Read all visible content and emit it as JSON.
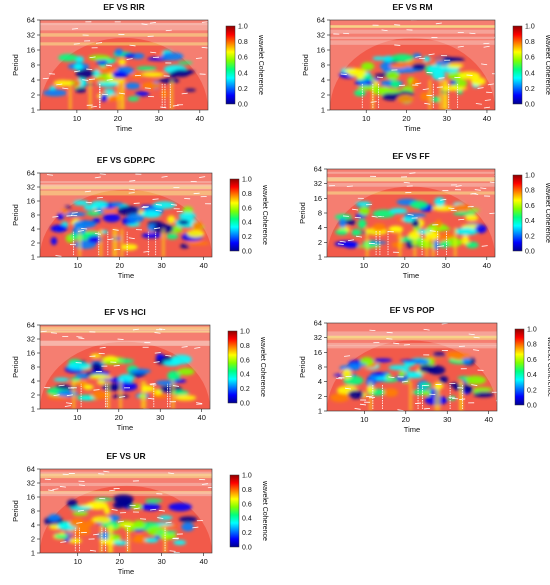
{
  "colors": {
    "background": "#ffffff",
    "coherence_scale": [
      "#00008f",
      "#0000ff",
      "#0080ff",
      "#00ffff",
      "#00ff80",
      "#80ff00",
      "#ffff00",
      "#ff8000",
      "#ff0000",
      "#8f0000"
    ],
    "high_coherence": "#f25a4a",
    "arrow_color": "#ffffff"
  },
  "chart_data": [
    {
      "type": "heatmap",
      "title": "EF VS RIR",
      "xlabel": "Time",
      "ylabel": "Period",
      "x_ticks": [
        10,
        20,
        30,
        40
      ],
      "y_ticks": [
        1,
        2,
        4,
        8,
        16,
        32,
        64
      ],
      "y_scale": "log2",
      "xlim": [
        1,
        42
      ],
      "ylim": [
        1,
        64
      ],
      "colorbar": {
        "label": "wavelet Coherence",
        "ticks": [
          0.0,
          0.2,
          0.4,
          0.6,
          0.8,
          1.0
        ],
        "range": [
          0.0,
          1.0
        ]
      },
      "cone_of_influence": true,
      "grid": false
    },
    {
      "type": "heatmap",
      "title": "EF VS RM",
      "xlabel": "Time",
      "ylabel": "Period",
      "x_ticks": [
        10,
        20,
        30,
        40
      ],
      "y_ticks": [
        1,
        2,
        4,
        8,
        16,
        32,
        64
      ],
      "y_scale": "log2",
      "xlim": [
        1,
        42
      ],
      "ylim": [
        1,
        64
      ],
      "colorbar": {
        "label": "wavelet Coherence",
        "ticks": [
          0.0,
          0.2,
          0.4,
          0.6,
          0.8,
          1.0
        ],
        "range": [
          0.0,
          1.0
        ]
      },
      "cone_of_influence": true,
      "grid": false
    },
    {
      "type": "heatmap",
      "title": "EF VS GDP.PC",
      "xlabel": "Time",
      "ylabel": "Period",
      "x_ticks": [
        10,
        20,
        30,
        40
      ],
      "y_ticks": [
        1,
        2,
        4,
        8,
        16,
        32,
        64
      ],
      "y_scale": "log2",
      "xlim": [
        1,
        42
      ],
      "ylim": [
        1,
        64
      ],
      "colorbar": {
        "label": "wavelet Coherence",
        "ticks": [
          0.0,
          0.2,
          0.4,
          0.6,
          0.8,
          1.0
        ],
        "range": [
          0.0,
          1.0
        ]
      },
      "cone_of_influence": true,
      "grid": false
    },
    {
      "type": "heatmap",
      "title": "EF VS FF",
      "xlabel": "Time",
      "ylabel": "Period",
      "x_ticks": [
        10,
        20,
        30,
        40
      ],
      "y_ticks": [
        1,
        2,
        4,
        8,
        16,
        32,
        64
      ],
      "y_scale": "log2",
      "xlim": [
        1,
        42
      ],
      "ylim": [
        1,
        64
      ],
      "colorbar": {
        "label": "wavelet Coherence",
        "ticks": [
          0.0,
          0.2,
          0.4,
          0.6,
          0.8,
          1.0
        ],
        "range": [
          0.0,
          1.0
        ]
      },
      "cone_of_influence": true,
      "grid": false
    },
    {
      "type": "heatmap",
      "title": "EF VS HCI",
      "xlabel": "Time",
      "ylabel": "Period",
      "x_ticks": [
        10,
        20,
        30,
        40
      ],
      "y_ticks": [
        1,
        2,
        4,
        8,
        16,
        32,
        64
      ],
      "y_scale": "log2",
      "xlim": [
        1,
        42
      ],
      "ylim": [
        1,
        64
      ],
      "colorbar": {
        "label": "wavelet Coherence",
        "ticks": [
          0.0,
          0.2,
          0.4,
          0.6,
          0.8,
          1.0
        ],
        "range": [
          0.0,
          1.0
        ]
      },
      "cone_of_influence": true,
      "grid": false
    },
    {
      "type": "heatmap",
      "title": "EF VS POP",
      "xlabel": "Time",
      "ylabel": "Period",
      "x_ticks": [
        10,
        20,
        30,
        40
      ],
      "y_ticks": [
        1,
        2,
        4,
        8,
        16,
        32,
        64
      ],
      "y_scale": "log2",
      "xlim": [
        1,
        42
      ],
      "ylim": [
        1,
        64
      ],
      "colorbar": {
        "label": "wavelet Coherence",
        "ticks": [
          0.0,
          0.2,
          0.4,
          0.6,
          0.8,
          1.0
        ],
        "range": [
          0.0,
          1.0
        ]
      },
      "cone_of_influence": true,
      "grid": false
    },
    {
      "type": "heatmap",
      "title": "EF VS UR",
      "xlabel": "Time",
      "ylabel": "Period",
      "x_ticks": [
        10,
        20,
        30,
        40
      ],
      "y_ticks": [
        1,
        2,
        4,
        8,
        16,
        32,
        64
      ],
      "y_scale": "log2",
      "xlim": [
        1,
        42
      ],
      "ylim": [
        1,
        64
      ],
      "colorbar": {
        "label": "wavelet Coherence",
        "ticks": [
          0.0,
          0.2,
          0.4,
          0.6,
          0.8,
          1.0
        ],
        "range": [
          0.0,
          1.0
        ]
      },
      "cone_of_influence": true,
      "grid": false
    }
  ]
}
